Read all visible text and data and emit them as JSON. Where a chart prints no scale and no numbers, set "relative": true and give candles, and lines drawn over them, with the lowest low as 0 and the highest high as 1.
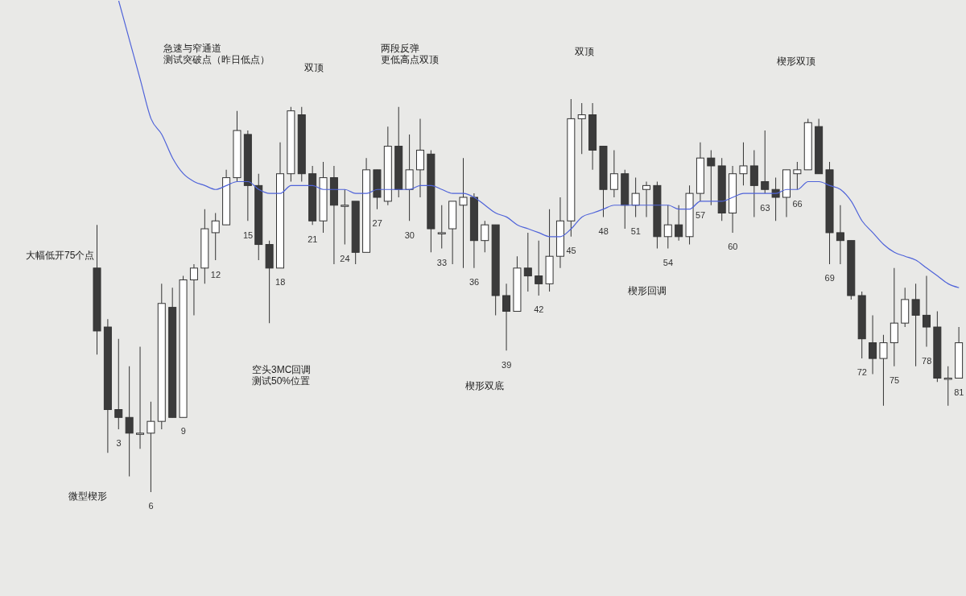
{
  "chart_data": {
    "type": "candlestick",
    "relative": true,
    "categories": [
      null,
      null,
      "3",
      null,
      null,
      "6",
      null,
      null,
      "9",
      null,
      null,
      "12",
      null,
      null,
      "15",
      null,
      null,
      "18",
      null,
      null,
      "21",
      null,
      null,
      "24",
      null,
      null,
      "27",
      null,
      null,
      "30",
      null,
      null,
      "33",
      null,
      null,
      "36",
      null,
      null,
      "39",
      null,
      null,
      "42",
      null,
      null,
      "45",
      null,
      null,
      "48",
      null,
      null,
      "51",
      null,
      null,
      "54",
      null,
      null,
      "57",
      null,
      null,
      "60",
      null,
      null,
      "63",
      null,
      null,
      "66",
      null,
      null,
      "69",
      null,
      null,
      "72",
      null,
      null,
      "75",
      null,
      null,
      "78",
      null,
      null,
      "81"
    ],
    "ohlc": [
      [
        0.57,
        0.68,
        0.35,
        0.41
      ],
      [
        0.42,
        0.44,
        0.1,
        0.21
      ],
      [
        0.21,
        0.39,
        0.16,
        0.19
      ],
      [
        0.19,
        0.32,
        0.04,
        0.15
      ],
      [
        0.15,
        0.37,
        0.11,
        0.15
      ],
      [
        0.15,
        0.23,
        0,
        0.18
      ],
      [
        0.18,
        0.53,
        0.16,
        0.48
      ],
      [
        0.47,
        0.52,
        0.19,
        0.19
      ],
      [
        0.19,
        0.55,
        0.19,
        0.54
      ],
      [
        0.54,
        0.58,
        0.45,
        0.57
      ],
      [
        0.57,
        0.72,
        0.53,
        0.67
      ],
      [
        0.66,
        0.71,
        0.59,
        0.69
      ],
      [
        0.68,
        0.82,
        0.68,
        0.8
      ],
      [
        0.8,
        0.97,
        0.79,
        0.92
      ],
      [
        0.91,
        0.92,
        0.69,
        0.78
      ],
      [
        0.78,
        0.81,
        0.59,
        0.63
      ],
      [
        0.63,
        0.64,
        0.43,
        0.57
      ],
      [
        0.57,
        0.89,
        0.57,
        0.81
      ],
      [
        0.81,
        0.98,
        0.79,
        0.97
      ],
      [
        0.96,
        0.98,
        0.79,
        0.81
      ],
      [
        0.81,
        0.83,
        0.68,
        0.69
      ],
      [
        0.69,
        0.84,
        0.66,
        0.8
      ],
      [
        0.8,
        0.83,
        0.58,
        0.73
      ],
      [
        0.73,
        0.77,
        0.63,
        0.73
      ],
      [
        0.74,
        0.74,
        0.58,
        0.61
      ],
      [
        0.61,
        0.85,
        0.61,
        0.82
      ],
      [
        0.82,
        0.82,
        0.72,
        0.75
      ],
      [
        0.74,
        0.93,
        0.73,
        0.88
      ],
      [
        0.88,
        0.98,
        0.75,
        0.77
      ],
      [
        0.77,
        0.91,
        0.69,
        0.82
      ],
      [
        0.82,
        0.95,
        0.75,
        0.87
      ],
      [
        0.86,
        0.87,
        0.61,
        0.67
      ],
      [
        0.66,
        0.73,
        0.62,
        0.66
      ],
      [
        0.67,
        0.74,
        0.58,
        0.74
      ],
      [
        0.73,
        0.85,
        0.57,
        0.75
      ],
      [
        0.75,
        0.76,
        0.57,
        0.64
      ],
      [
        0.64,
        0.69,
        0.61,
        0.68
      ],
      [
        0.68,
        0.68,
        0.45,
        0.5
      ],
      [
        0.5,
        0.53,
        0.36,
        0.46
      ],
      [
        0.46,
        0.6,
        0.46,
        0.57
      ],
      [
        0.57,
        0.66,
        0.51,
        0.55
      ],
      [
        0.55,
        0.64,
        0.5,
        0.53
      ],
      [
        0.53,
        0.72,
        0.51,
        0.6
      ],
      [
        0.6,
        0.75,
        0.57,
        0.69
      ],
      [
        0.69,
        1,
        0.65,
        0.95
      ],
      [
        0.95,
        0.99,
        0.86,
        0.96
      ],
      [
        0.96,
        0.99,
        0.82,
        0.87
      ],
      [
        0.88,
        0.88,
        0.7,
        0.77
      ],
      [
        0.77,
        0.87,
        0.75,
        0.81
      ],
      [
        0.81,
        0.82,
        0.67,
        0.73
      ],
      [
        0.73,
        0.8,
        0.7,
        0.76
      ],
      [
        0.77,
        0.79,
        0.7,
        0.78
      ],
      [
        0.78,
        0.79,
        0.62,
        0.65
      ],
      [
        0.65,
        0.73,
        0.62,
        0.68
      ],
      [
        0.68,
        0.73,
        0.64,
        0.65
      ],
      [
        0.65,
        0.78,
        0.63,
        0.76
      ],
      [
        0.76,
        0.89,
        0.74,
        0.85
      ],
      [
        0.85,
        0.87,
        0.73,
        0.83
      ],
      [
        0.83,
        0.85,
        0.69,
        0.71
      ],
      [
        0.71,
        0.83,
        0.66,
        0.81
      ],
      [
        0.81,
        0.89,
        0.78,
        0.83
      ],
      [
        0.83,
        0.87,
        0.7,
        0.78
      ],
      [
        0.79,
        0.92,
        0.76,
        0.77
      ],
      [
        0.77,
        0.8,
        0.69,
        0.75
      ],
      [
        0.75,
        0.82,
        0.7,
        0.82
      ],
      [
        0.81,
        0.84,
        0.77,
        0.82
      ],
      [
        0.82,
        0.95,
        0.82,
        0.94
      ],
      [
        0.93,
        0.95,
        0.81,
        0.81
      ],
      [
        0.82,
        0.84,
        0.58,
        0.66
      ],
      [
        0.66,
        0.73,
        0.58,
        0.64
      ],
      [
        0.64,
        0.64,
        0.49,
        0.5
      ],
      [
        0.5,
        0.51,
        0.34,
        0.39
      ],
      [
        0.38,
        0.45,
        0.3,
        0.34
      ],
      [
        0.34,
        0.4,
        0.22,
        0.38
      ],
      [
        0.38,
        0.57,
        0.32,
        0.43
      ],
      [
        0.43,
        0.52,
        0.42,
        0.49
      ],
      [
        0.49,
        0.53,
        0.32,
        0.45
      ],
      [
        0.45,
        0.55,
        0.37,
        0.42
      ],
      [
        0.42,
        0.46,
        0.28,
        0.29
      ],
      [
        0.29,
        0.32,
        0.22,
        0.29
      ],
      [
        0.29,
        0.42,
        0.29,
        0.38
      ]
    ],
    "series": [
      {
        "type": "line",
        "color": "#4f63d9",
        "values": [
          null,
          null,
          1.25,
          1.15,
          1.05,
          0.95,
          0.91,
          0.85,
          0.81,
          0.79,
          0.78,
          0.77,
          0.78,
          0.79,
          0.79,
          0.77,
          0.76,
          0.76,
          0.78,
          0.78,
          0.78,
          0.77,
          0.77,
          0.77,
          0.76,
          0.76,
          0.77,
          0.77,
          0.77,
          0.77,
          0.78,
          0.78,
          0.77,
          0.76,
          0.76,
          0.75,
          0.73,
          0.71,
          0.7,
          0.68,
          0.67,
          0.66,
          0.65,
          0.65,
          0.67,
          0.7,
          0.71,
          0.72,
          0.73,
          0.73,
          0.73,
          0.73,
          0.73,
          0.73,
          0.72,
          0.72,
          0.74,
          0.74,
          0.74,
          0.75,
          0.76,
          0.76,
          0.76,
          0.76,
          0.77,
          0.77,
          0.79,
          0.79,
          0.78,
          0.77,
          0.74,
          0.69,
          0.66,
          0.63,
          0.61,
          0.6,
          0.59,
          0.57,
          0.55,
          0.53,
          0.52
        ]
      }
    ],
    "annotations": [
      "急速与窄通道测试突破点（昨日低点）",
      "双顶",
      "两段反弹更低高点双顶",
      "双顶",
      "楔形双顶",
      "大幅低开75个点",
      "空头3MC回调测试50%位置",
      "楔形双底",
      "楔形回调",
      "微型楔形"
    ]
  }
}
